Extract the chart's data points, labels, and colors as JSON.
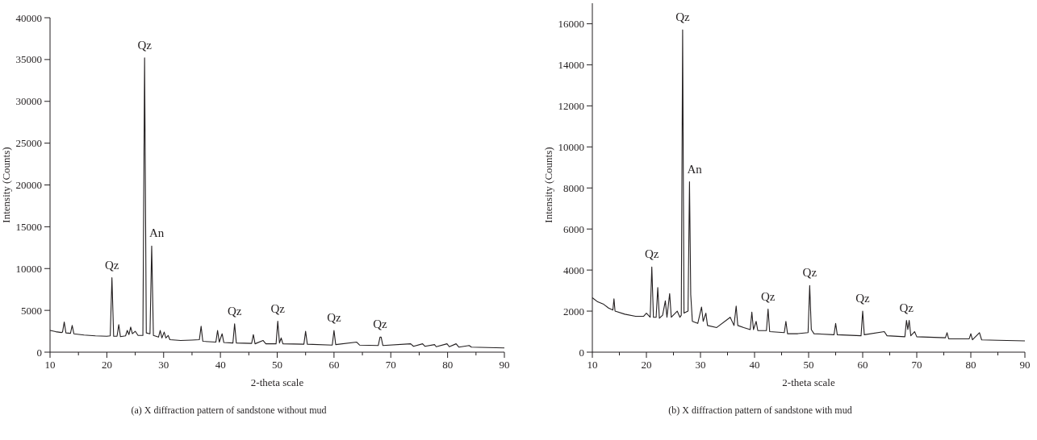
{
  "chart_data": [
    {
      "type": "line",
      "xlabel": "2-theta scale",
      "ylabel": "Intensity (Counts)",
      "xlim": [
        10,
        90
      ],
      "ylim": [
        0,
        40000
      ],
      "xticks": [
        10,
        {
          "value": 15,
          "label": null
        },
        20,
        {
          "value": 25,
          "label": null
        },
        30,
        {
          "value": 35,
          "label": null
        },
        40,
        {
          "value": 45,
          "label": null
        },
        50,
        {
          "value": 55,
          "label": null
        },
        60,
        {
          "value": 65,
          "label": null
        },
        70,
        {
          "value": 75,
          "label": null
        },
        80,
        {
          "value": 85,
          "label": null
        },
        90
      ],
      "yticks": [
        0,
        5000,
        10000,
        15000,
        20000,
        25000,
        30000,
        35000,
        40000
      ],
      "grid": false,
      "line_style": "solid",
      "series": [
        {
          "color": "#231f20",
          "x": [
            10,
            11,
            12,
            12.2,
            12.5,
            12.8,
            13.6,
            13.9,
            14.2,
            16,
            18,
            20,
            20.6,
            20.9,
            21.2,
            21.8,
            22.1,
            22.4,
            23.3,
            23.6,
            23.9,
            24.2,
            24.5,
            25,
            25.5,
            26.35,
            26.65,
            26.95,
            27.6,
            27.9,
            28.2,
            29.1,
            29.4,
            29.7,
            30.1,
            30.4,
            30.8,
            31.1,
            33,
            35,
            36.3,
            36.6,
            36.9,
            39.2,
            39.5,
            39.8,
            40.3,
            40.6,
            42.2,
            42.5,
            42.8,
            45.5,
            45.8,
            46.1,
            47.5,
            48,
            49.8,
            50.1,
            50.4,
            50.7,
            51,
            54.7,
            55,
            55.3,
            59.7,
            60,
            60.3,
            64,
            64.5,
            67.8,
            68.1,
            68.3,
            68.6,
            73.5,
            74,
            75.6,
            76,
            77.7,
            78,
            79.9,
            80.3,
            81.5,
            82,
            83.8,
            84.2,
            90
          ],
          "values": [
            2600,
            2450,
            2350,
            2400,
            3600,
            2300,
            2250,
            3200,
            2200,
            2050,
            1950,
            1900,
            1950,
            8900,
            1900,
            1900,
            3300,
            1850,
            1950,
            2600,
            2100,
            3000,
            2200,
            2500,
            2000,
            2000,
            35200,
            2300,
            2200,
            12700,
            2000,
            1800,
            2600,
            1700,
            2400,
            1700,
            2000,
            1500,
            1400,
            1450,
            1500,
            3100,
            1300,
            1200,
            2600,
            1200,
            2200,
            1150,
            1100,
            3400,
            1100,
            1050,
            2100,
            1000,
            1400,
            1000,
            1000,
            3700,
            1100,
            1700,
            1000,
            950,
            2500,
            950,
            850,
            2600,
            900,
            1200,
            850,
            800,
            1800,
            1800,
            800,
            1000,
            700,
            1000,
            700,
            900,
            650,
            1000,
            650,
            1000,
            600,
            800,
            600,
            500
          ]
        }
      ],
      "annotations": [
        {
          "text": "Qz",
          "x": 20.9,
          "y": 8900
        },
        {
          "text": "Qz",
          "x": 26.65,
          "y": 35200
        },
        {
          "text": "An",
          "x": 27.9,
          "y": 12700
        },
        {
          "text": "Qz",
          "x": 42.5,
          "y": 3400
        },
        {
          "text": "Qz",
          "x": 50.1,
          "y": 3700
        },
        {
          "text": "Qz",
          "x": 60,
          "y": 2600
        },
        {
          "text": "Qz",
          "x": 68.1,
          "y": 1800
        },
        "(a)  X diffraction pattern of sandstone without mud"
      ]
    },
    {
      "type": "line",
      "xlabel": "2-theta scale",
      "ylabel": "Intensity (Counts)",
      "xlim": [
        10,
        90
      ],
      "ylim": [
        0,
        17000
      ],
      "xticks": [
        10,
        {
          "value": 15,
          "label": null
        },
        20,
        {
          "value": 25,
          "label": null
        },
        30,
        {
          "value": 35,
          "label": null
        },
        40,
        {
          "value": 45,
          "label": null
        },
        50,
        {
          "value": 55,
          "label": null
        },
        60,
        {
          "value": 65,
          "label": null
        },
        70,
        {
          "value": 75,
          "label": null
        },
        80,
        {
          "value": 85,
          "label": null
        },
        90
      ],
      "yticks": [
        0,
        2000,
        4000,
        6000,
        8000,
        10000,
        12000,
        14000,
        16000
      ],
      "grid": false,
      "line_style": "solid",
      "series": [
        {
          "color": "#231f20",
          "x": [
            10,
            11,
            12,
            13,
            13.8,
            14,
            14.2,
            16,
            18,
            19.5,
            20,
            20.7,
            21,
            21.3,
            21.8,
            22.1,
            22.4,
            23,
            23.5,
            23.8,
            24.3,
            24.6,
            25.7,
            26.2,
            26.45,
            26.7,
            26.95,
            27.7,
            27.97,
            28.2,
            28.5,
            29.5,
            30.2,
            30.5,
            31,
            31.3,
            33,
            35.5,
            36.2,
            36.6,
            36.9,
            38,
            39.2,
            39.5,
            39.8,
            40.3,
            40.6,
            42.2,
            42.5,
            42.8,
            45.5,
            45.8,
            46.1,
            48,
            49.9,
            50.2,
            50.5,
            51,
            54.7,
            55,
            55.3,
            59.7,
            60,
            60.3,
            64,
            64.5,
            67.8,
            68.1,
            68.35,
            68.6,
            68.9,
            69.6,
            70,
            75.3,
            75.6,
            75.9,
            79.7,
            80,
            80.3,
            81.6,
            82,
            85,
            90
          ],
          "values": [
            2650,
            2450,
            2350,
            2150,
            2050,
            2600,
            2000,
            1850,
            1750,
            1750,
            1900,
            1700,
            4150,
            1700,
            1700,
            3150,
            1650,
            1800,
            2500,
            1700,
            2850,
            1700,
            2000,
            1700,
            1800,
            15700,
            1900,
            2000,
            8300,
            2800,
            1500,
            1400,
            2200,
            1500,
            1900,
            1300,
            1200,
            1700,
            1300,
            2250,
            1300,
            1200,
            1100,
            1950,
            1100,
            1500,
            1050,
            1050,
            2100,
            1000,
            950,
            1500,
            900,
            900,
            950,
            3250,
            1100,
            900,
            850,
            1400,
            850,
            800,
            2000,
            850,
            1000,
            800,
            750,
            1550,
            1100,
            1550,
            800,
            1000,
            750,
            700,
            950,
            650,
            650,
            900,
            600,
            950,
            600,
            580,
            550
          ]
        }
      ],
      "annotations": [
        {
          "text": "Qz",
          "x": 21,
          "y": 4150
        },
        {
          "text": "Qz",
          "x": 26.7,
          "y": 15700
        },
        {
          "text": "An",
          "x": 27.97,
          "y": 8300
        },
        {
          "text": "Qz",
          "x": 42.5,
          "y": 2100
        },
        {
          "text": "Qz",
          "x": 50.2,
          "y": 3250
        },
        {
          "text": "Qz",
          "x": 60,
          "y": 2000
        },
        {
          "text": "Qz",
          "x": 68.1,
          "y": 1550
        },
        "(b)  X diffraction pattern of sandstone with mud"
      ]
    }
  ]
}
